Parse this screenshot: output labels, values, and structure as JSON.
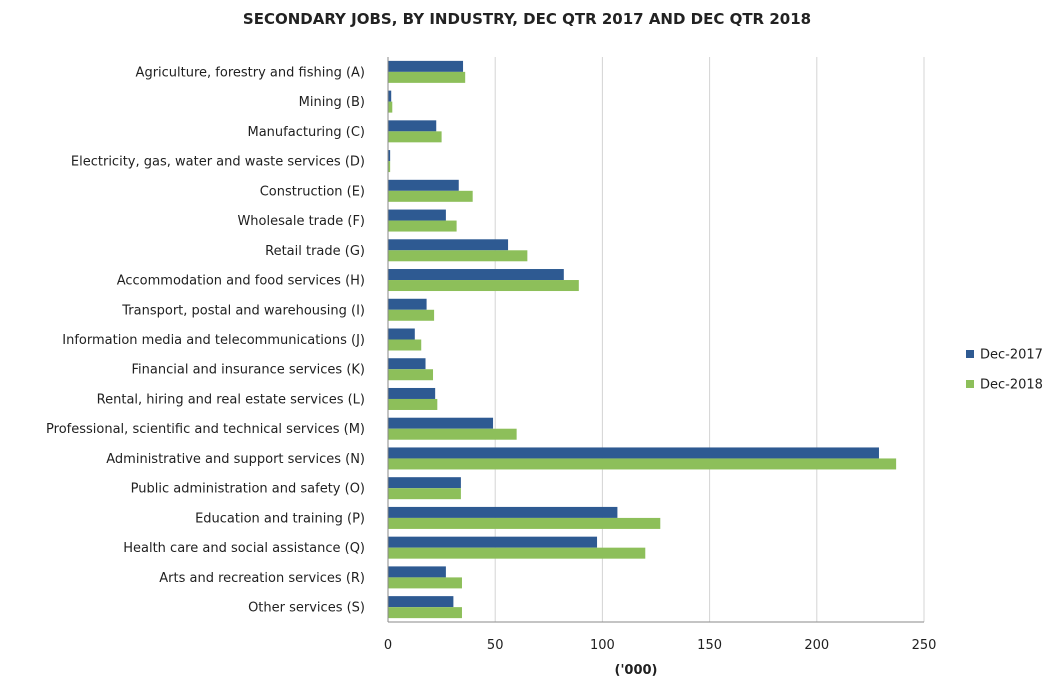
{
  "chart_data": {
    "type": "bar",
    "orientation": "horizontal",
    "title": "SECONDARY JOBS, BY INDUSTRY, DEC QTR 2017 AND DEC QTR 2018",
    "xlabel": "('000)",
    "ylabel": "",
    "xlim": [
      0,
      250
    ],
    "x_ticks": [
      0,
      50,
      100,
      150,
      200,
      250
    ],
    "grid": true,
    "legend_position": "right",
    "categories": [
      "Agriculture, forestry and fishing (A)",
      "Mining (B)",
      "Manufacturing (C)",
      "Electricity, gas, water and waste services (D)",
      "Construction (E)",
      "Wholesale trade (F)",
      "Retail trade (G)",
      "Accommodation and food services (H)",
      "Transport, postal and warehousing (I)",
      "Information media and telecommunications (J)",
      "Financial and insurance services (K)",
      "Rental, hiring and real estate services (L)",
      "Professional, scientific and technical services (M)",
      "Administrative and support services (N)",
      "Public administration and safety (O)",
      "Education and training (P)",
      "Health care and social assistance (Q)",
      "Arts and recreation services (R)",
      "Other services (S)"
    ],
    "series": [
      {
        "name": "Dec-2017",
        "color": "#2E5A92",
        "values": [
          35,
          1.5,
          22.5,
          1,
          33,
          27,
          56,
          82,
          18,
          12.5,
          17.5,
          22,
          49,
          229,
          34,
          107,
          97.5,
          27,
          30.5
        ]
      },
      {
        "name": "Dec-2018",
        "color": "#8DBF5A",
        "values": [
          36,
          2,
          25,
          1,
          39.5,
          32,
          65,
          89,
          21.5,
          15.5,
          21,
          23,
          60,
          237,
          34,
          127,
          120,
          34.5,
          34.5
        ]
      }
    ]
  }
}
